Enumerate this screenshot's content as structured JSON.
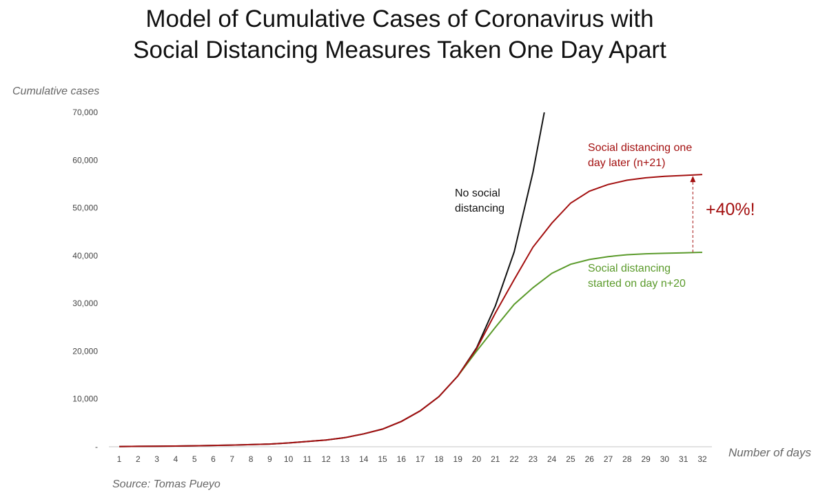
{
  "chart_data": {
    "type": "line",
    "title": [
      "Model of Cumulative Cases of Coronavirus with",
      "Social Distancing Measures Taken One Day Apart"
    ],
    "xlabel": "Number of days",
    "ylabel": "Cumulative cases",
    "source": "Source: Tomas Pueyo",
    "ylim": [
      0,
      70000
    ],
    "yticks": [
      0,
      10000,
      20000,
      30000,
      40000,
      50000,
      60000,
      70000
    ],
    "ytick_labels": [
      "-",
      "10,000",
      "20,000",
      "30,000",
      "40,000",
      "50,000",
      "60,000",
      "70,000"
    ],
    "x": [
      1,
      2,
      3,
      4,
      5,
      6,
      7,
      8,
      9,
      10,
      11,
      12,
      13,
      14,
      15,
      16,
      17,
      18,
      19,
      20,
      21,
      22,
      23,
      24,
      25,
      26,
      27,
      28,
      29,
      30,
      31,
      32
    ],
    "grid": false,
    "series": [
      {
        "name": "No social distancing",
        "label": [
          "No social",
          "distancing"
        ],
        "color": "#111111",
        "x": [
          1,
          2,
          3,
          4,
          5,
          6,
          7,
          8,
          9,
          10,
          11,
          12,
          13,
          14,
          15,
          16,
          17,
          18,
          19,
          20,
          21,
          22,
          23,
          23.6
        ],
        "values": [
          50,
          80,
          100,
          150,
          200,
          280,
          350,
          450,
          570,
          800,
          1100,
          1400,
          1900,
          2700,
          3700,
          5300,
          7500,
          10500,
          14800,
          20700,
          29500,
          40800,
          57500,
          70000
        ]
      },
      {
        "name": "Social distancing one day later (n+21)",
        "label": [
          "Social distancing one",
          "day later (n+21)"
        ],
        "color": "#a30f0f",
        "x": [
          1,
          2,
          3,
          4,
          5,
          6,
          7,
          8,
          9,
          10,
          11,
          12,
          13,
          14,
          15,
          16,
          17,
          18,
          19,
          20,
          21,
          22,
          23,
          24,
          25,
          26,
          27,
          28,
          29,
          30,
          31,
          32
        ],
        "values": [
          50,
          80,
          100,
          150,
          200,
          280,
          350,
          450,
          570,
          800,
          1100,
          1400,
          1900,
          2700,
          3700,
          5300,
          7500,
          10500,
          14800,
          20500,
          28000,
          35000,
          41800,
          46800,
          51000,
          53500,
          54900,
          55800,
          56300,
          56600,
          56800,
          57000
        ]
      },
      {
        "name": "Social distancing started on day n+20",
        "label": [
          "Social distancing",
          "started on day n+20"
        ],
        "color": "#5a9a2a",
        "x": [
          19,
          20,
          21,
          22,
          23,
          24,
          25,
          26,
          27,
          28,
          29,
          30,
          31,
          32
        ],
        "values": [
          14800,
          20000,
          25000,
          29800,
          33300,
          36300,
          38200,
          39200,
          39800,
          40200,
          40400,
          40500,
          40600,
          40700
        ]
      }
    ],
    "annotations": [
      {
        "text": "+40%!",
        "color": "#a30f0f",
        "from_value": 40700,
        "to_value": 57000,
        "at_x": 31.5
      }
    ]
  }
}
